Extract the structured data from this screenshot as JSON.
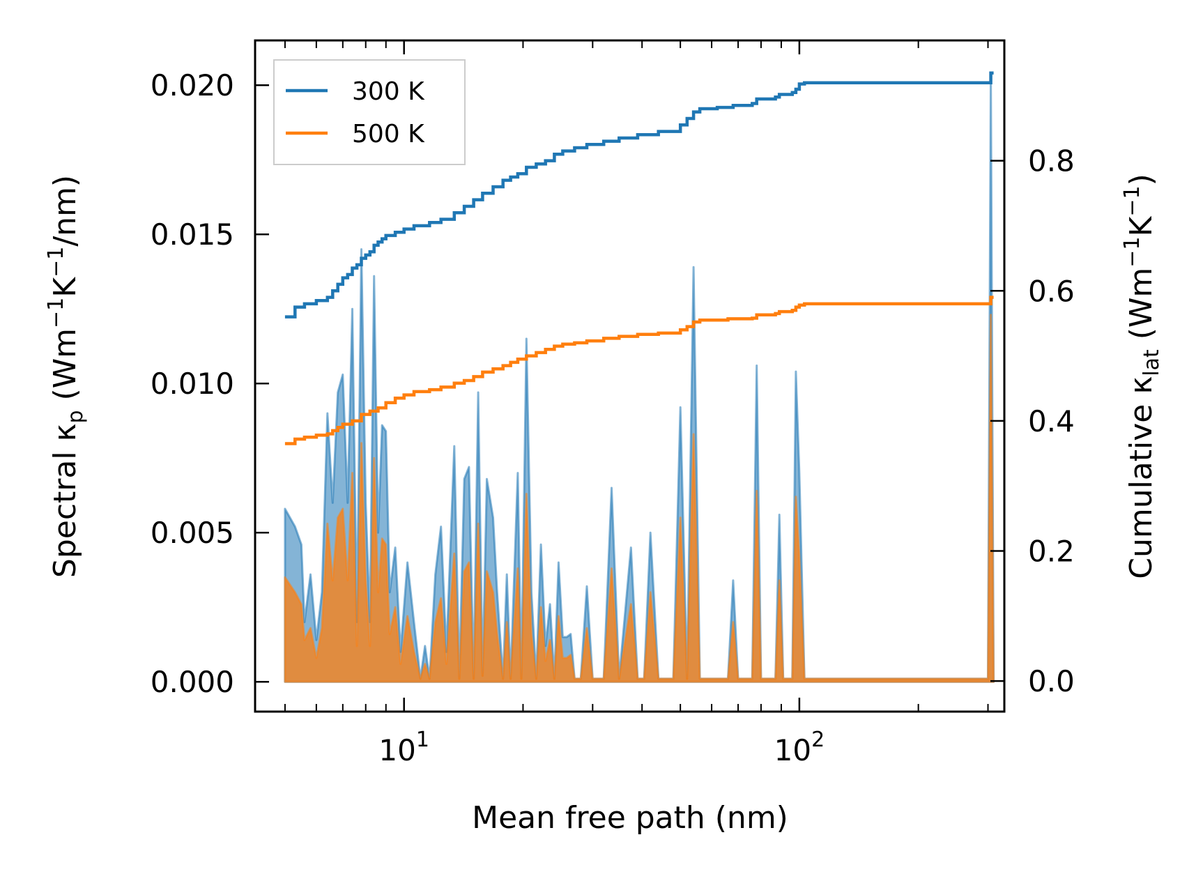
{
  "chart_data": {
    "type": "line",
    "xlabel": "Mean free path (nm)",
    "xscale": "log",
    "xlim": [
      4.2,
      330
    ],
    "x_ticks": [
      10,
      100
    ],
    "x_tick_labels": [
      {
        "base": "10",
        "exp": "1"
      },
      {
        "base": "10",
        "exp": "2"
      }
    ],
    "ylabel_left": {
      "prefix": "Spectral κ",
      "sub": "p",
      "mid": " (Wm",
      "sup1": "−1",
      "mid2": "K",
      "sup2": "−1",
      "suffix": "/nm)"
    },
    "ylim_left": [
      -0.001,
      0.0215
    ],
    "y_ticks_left": [
      0.0,
      0.005,
      0.01,
      0.015,
      0.02
    ],
    "y_tick_labels_left": [
      "0.000",
      "0.005",
      "0.010",
      "0.015",
      "0.020"
    ],
    "ylabel_right": {
      "prefix": "Cumulative κ",
      "sub": "lat",
      "mid": " (Wm",
      "sup1": "−1",
      "mid2": "K",
      "sup2": "−1",
      "suffix": ")"
    },
    "ylim_right": [
      -0.047,
      0.985
    ],
    "y_ticks_right": [
      0.0,
      0.2,
      0.4,
      0.6,
      0.8
    ],
    "y_tick_labels_right": [
      "0.0",
      "0.2",
      "0.4",
      "0.6",
      "0.8"
    ],
    "legend": {
      "position": "upper-left",
      "entries": [
        "300 K",
        "500 K"
      ]
    },
    "series": [
      {
        "name": "300 K",
        "color": "#1f77b4",
        "spectral": [
          [
            5.0,
            0.0058
          ],
          [
            5.3,
            0.0052
          ],
          [
            5.5,
            0.0046
          ],
          [
            5.6,
            0.002
          ],
          [
            5.8,
            0.0036
          ],
          [
            6.0,
            0.0014
          ],
          [
            6.2,
            0.003
          ],
          [
            6.4,
            0.009
          ],
          [
            6.6,
            0.006
          ],
          [
            6.8,
            0.0097
          ],
          [
            7.0,
            0.0103
          ],
          [
            7.2,
            0.006
          ],
          [
            7.4,
            0.0125
          ],
          [
            7.6,
            0.002
          ],
          [
            7.8,
            0.0145
          ],
          [
            8.0,
            0.006
          ],
          [
            8.2,
            0.002
          ],
          [
            8.4,
            0.0136
          ],
          [
            8.6,
            0.005
          ],
          [
            8.8,
            0.0086
          ],
          [
            9.0,
            0.0084
          ],
          [
            9.2,
            0.003
          ],
          [
            9.5,
            0.0045
          ],
          [
            9.8,
            0.001
          ],
          [
            10.2,
            0.004
          ],
          [
            10.6,
            0.002
          ],
          [
            11.0,
            0.0001
          ],
          [
            11.3,
            0.0012
          ],
          [
            11.6,
            0.0001
          ],
          [
            12.0,
            0.0036
          ],
          [
            12.4,
            0.0052
          ],
          [
            12.8,
            0.001
          ],
          [
            13.4,
            0.0079
          ],
          [
            13.8,
            0.0001
          ],
          [
            14.2,
            0.0068
          ],
          [
            14.6,
            0.0072
          ],
          [
            15.0,
            0.0001
          ],
          [
            15.4,
            0.0097
          ],
          [
            15.8,
            0.0002
          ],
          [
            16.2,
            0.0068
          ],
          [
            16.8,
            0.0055
          ],
          [
            17.2,
            0.003
          ],
          [
            17.8,
            0.0001
          ],
          [
            18.2,
            0.0036
          ],
          [
            18.6,
            0.0001
          ],
          [
            19.4,
            0.007
          ],
          [
            19.8,
            0.0001
          ],
          [
            20.4,
            0.0115
          ],
          [
            21.0,
            0.003
          ],
          [
            21.6,
            0.0001
          ],
          [
            22.2,
            0.0046
          ],
          [
            22.8,
            0.0012
          ],
          [
            23.4,
            0.0026
          ],
          [
            24.0,
            0.0001
          ],
          [
            24.6,
            0.004
          ],
          [
            25.2,
            0.0015
          ],
          [
            25.8,
            0.0015
          ],
          [
            26.4,
            0.0016
          ],
          [
            27.0,
            0.0001
          ],
          [
            28.0,
            0.0001
          ],
          [
            29.0,
            0.0032
          ],
          [
            30.0,
            0.0001
          ],
          [
            32.0,
            0.0001
          ],
          [
            33.5,
            0.0065
          ],
          [
            35.0,
            0.0001
          ],
          [
            37.5,
            0.0045
          ],
          [
            39.0,
            0.0001
          ],
          [
            40.5,
            0.0001
          ],
          [
            42.0,
            0.005
          ],
          [
            44.0,
            0.0001
          ],
          [
            48.0,
            0.0001
          ],
          [
            50.0,
            0.0092
          ],
          [
            52.0,
            0.0001
          ],
          [
            54.0,
            0.0139
          ],
          [
            56.0,
            0.0001
          ],
          [
            62.0,
            0.0001
          ],
          [
            66.0,
            0.0001
          ],
          [
            68.0,
            0.0034
          ],
          [
            70.0,
            0.0001
          ],
          [
            76.0,
            0.0001
          ],
          [
            78.0,
            0.0106
          ],
          [
            80.0,
            0.0001
          ],
          [
            87.0,
            0.0001
          ],
          [
            89.0,
            0.0056
          ],
          [
            91.0,
            0.0001
          ],
          [
            96.0,
            0.0001
          ],
          [
            98.0,
            0.0104
          ],
          [
            100.0,
            0.007
          ],
          [
            103.0,
            0.0001
          ],
          [
            300.0,
            0.0001
          ],
          [
            305.0,
            0.0204
          ],
          [
            310.0,
            0.0001
          ]
        ],
        "cumulative": [
          [
            5.0,
            0.56
          ],
          [
            5.3,
            0.575
          ],
          [
            5.6,
            0.58
          ],
          [
            6.0,
            0.585
          ],
          [
            6.4,
            0.59
          ],
          [
            6.6,
            0.6
          ],
          [
            6.8,
            0.61
          ],
          [
            7.0,
            0.62
          ],
          [
            7.2,
            0.625
          ],
          [
            7.4,
            0.635
          ],
          [
            7.6,
            0.64
          ],
          [
            7.8,
            0.65
          ],
          [
            8.0,
            0.655
          ],
          [
            8.2,
            0.66
          ],
          [
            8.4,
            0.67
          ],
          [
            8.6,
            0.675
          ],
          [
            8.8,
            0.68
          ],
          [
            9.0,
            0.685
          ],
          [
            9.5,
            0.69
          ],
          [
            10.0,
            0.695
          ],
          [
            10.6,
            0.7
          ],
          [
            11.6,
            0.705
          ],
          [
            12.4,
            0.71
          ],
          [
            13.4,
            0.72
          ],
          [
            14.2,
            0.73
          ],
          [
            15.0,
            0.74
          ],
          [
            15.8,
            0.75
          ],
          [
            16.8,
            0.76
          ],
          [
            17.8,
            0.77
          ],
          [
            18.6,
            0.775
          ],
          [
            19.4,
            0.78
          ],
          [
            20.4,
            0.79
          ],
          [
            21.6,
            0.795
          ],
          [
            22.8,
            0.8
          ],
          [
            24.0,
            0.81
          ],
          [
            25.2,
            0.815
          ],
          [
            27.0,
            0.82
          ],
          [
            29.0,
            0.825
          ],
          [
            32.0,
            0.83
          ],
          [
            35.0,
            0.835
          ],
          [
            39.0,
            0.84
          ],
          [
            44.0,
            0.845
          ],
          [
            50.0,
            0.855
          ],
          [
            52.0,
            0.865
          ],
          [
            54.0,
            0.875
          ],
          [
            56.0,
            0.88
          ],
          [
            62.0,
            0.882
          ],
          [
            68.0,
            0.885
          ],
          [
            76.0,
            0.888
          ],
          [
            78.0,
            0.895
          ],
          [
            87.0,
            0.898
          ],
          [
            89.0,
            0.902
          ],
          [
            96.0,
            0.905
          ],
          [
            98.0,
            0.91
          ],
          [
            100.0,
            0.918
          ],
          [
            103.0,
            0.92
          ],
          [
            300.0,
            0.92
          ],
          [
            305.0,
            0.935
          ],
          [
            310.0,
            0.935
          ]
        ]
      },
      {
        "name": "500 K",
        "color": "#ff7f0e",
        "spectral": [
          [
            5.0,
            0.0035
          ],
          [
            5.3,
            0.003
          ],
          [
            5.5,
            0.0026
          ],
          [
            5.6,
            0.0014
          ],
          [
            5.8,
            0.0018
          ],
          [
            6.0,
            0.0008
          ],
          [
            6.2,
            0.0018
          ],
          [
            6.4,
            0.0053
          ],
          [
            6.6,
            0.0034
          ],
          [
            6.8,
            0.0055
          ],
          [
            7.0,
            0.0058
          ],
          [
            7.2,
            0.0034
          ],
          [
            7.4,
            0.007
          ],
          [
            7.6,
            0.0012
          ],
          [
            7.8,
            0.008
          ],
          [
            8.0,
            0.0034
          ],
          [
            8.2,
            0.0012
          ],
          [
            8.4,
            0.0075
          ],
          [
            8.6,
            0.003
          ],
          [
            8.8,
            0.0048
          ],
          [
            9.0,
            0.0046
          ],
          [
            9.2,
            0.0016
          ],
          [
            9.5,
            0.0025
          ],
          [
            9.8,
            0.0006
          ],
          [
            10.2,
            0.0022
          ],
          [
            10.6,
            0.001
          ],
          [
            11.0,
            0.0001
          ],
          [
            11.3,
            0.0006
          ],
          [
            11.6,
            0.0001
          ],
          [
            12.0,
            0.002
          ],
          [
            12.4,
            0.0028
          ],
          [
            12.8,
            0.0006
          ],
          [
            13.4,
            0.0043
          ],
          [
            13.8,
            0.0001
          ],
          [
            14.2,
            0.0037
          ],
          [
            14.6,
            0.004
          ],
          [
            15.0,
            0.0001
          ],
          [
            15.4,
            0.0053
          ],
          [
            15.8,
            0.0002
          ],
          [
            16.2,
            0.0037
          ],
          [
            16.8,
            0.003
          ],
          [
            17.2,
            0.0016
          ],
          [
            17.8,
            0.0001
          ],
          [
            18.2,
            0.002
          ],
          [
            18.6,
            0.0001
          ],
          [
            19.4,
            0.0038
          ],
          [
            19.8,
            0.0001
          ],
          [
            20.4,
            0.0063
          ],
          [
            21.0,
            0.0016
          ],
          [
            21.6,
            0.0001
          ],
          [
            22.2,
            0.0025
          ],
          [
            22.8,
            0.0007
          ],
          [
            23.4,
            0.0014
          ],
          [
            24.0,
            0.0001
          ],
          [
            24.6,
            0.0022
          ],
          [
            25.2,
            0.0008
          ],
          [
            25.8,
            0.0008
          ],
          [
            26.4,
            0.0009
          ],
          [
            27.0,
            0.0001
          ],
          [
            28.0,
            0.0001
          ],
          [
            29.0,
            0.0018
          ],
          [
            30.0,
            0.0001
          ],
          [
            32.0,
            0.0001
          ],
          [
            33.5,
            0.0038
          ],
          [
            35.0,
            0.0001
          ],
          [
            37.5,
            0.0026
          ],
          [
            39.0,
            0.0001
          ],
          [
            40.5,
            0.0001
          ],
          [
            42.0,
            0.003
          ],
          [
            44.0,
            0.0001
          ],
          [
            48.0,
            0.0001
          ],
          [
            50.0,
            0.0055
          ],
          [
            52.0,
            0.0001
          ],
          [
            54.0,
            0.0083
          ],
          [
            56.0,
            0.0001
          ],
          [
            62.0,
            0.0001
          ],
          [
            66.0,
            0.0001
          ],
          [
            68.0,
            0.002
          ],
          [
            70.0,
            0.0001
          ],
          [
            76.0,
            0.0001
          ],
          [
            78.0,
            0.0064
          ],
          [
            80.0,
            0.0001
          ],
          [
            87.0,
            0.0001
          ],
          [
            89.0,
            0.0034
          ],
          [
            91.0,
            0.0001
          ],
          [
            96.0,
            0.0001
          ],
          [
            98.0,
            0.0062
          ],
          [
            100.0,
            0.0042
          ],
          [
            103.0,
            0.0001
          ],
          [
            300.0,
            0.0001
          ],
          [
            305.0,
            0.0123
          ],
          [
            310.0,
            0.0001
          ]
        ],
        "cumulative": [
          [
            5.0,
            0.365
          ],
          [
            5.3,
            0.372
          ],
          [
            5.6,
            0.375
          ],
          [
            6.0,
            0.378
          ],
          [
            6.4,
            0.38
          ],
          [
            6.6,
            0.385
          ],
          [
            6.8,
            0.39
          ],
          [
            7.0,
            0.395
          ],
          [
            7.4,
            0.4
          ],
          [
            7.8,
            0.41
          ],
          [
            8.2,
            0.415
          ],
          [
            8.6,
            0.42
          ],
          [
            9.0,
            0.428
          ],
          [
            9.5,
            0.435
          ],
          [
            10.0,
            0.44
          ],
          [
            10.6,
            0.445
          ],
          [
            11.6,
            0.448
          ],
          [
            12.4,
            0.452
          ],
          [
            13.4,
            0.458
          ],
          [
            14.2,
            0.462
          ],
          [
            15.0,
            0.468
          ],
          [
            15.8,
            0.475
          ],
          [
            16.8,
            0.48
          ],
          [
            17.8,
            0.485
          ],
          [
            18.6,
            0.49
          ],
          [
            19.4,
            0.495
          ],
          [
            20.4,
            0.5
          ],
          [
            21.6,
            0.505
          ],
          [
            22.8,
            0.51
          ],
          [
            24.0,
            0.515
          ],
          [
            25.2,
            0.518
          ],
          [
            27.0,
            0.52
          ],
          [
            29.0,
            0.523
          ],
          [
            32.0,
            0.527
          ],
          [
            35.0,
            0.53
          ],
          [
            39.0,
            0.533
          ],
          [
            44.0,
            0.535
          ],
          [
            50.0,
            0.54
          ],
          [
            52.0,
            0.545
          ],
          [
            54.0,
            0.552
          ],
          [
            56.0,
            0.555
          ],
          [
            66.0,
            0.557
          ],
          [
            76.0,
            0.558
          ],
          [
            78.0,
            0.563
          ],
          [
            87.0,
            0.565
          ],
          [
            89.0,
            0.568
          ],
          [
            96.0,
            0.57
          ],
          [
            98.0,
            0.575
          ],
          [
            100.0,
            0.578
          ],
          [
            103.0,
            0.58
          ],
          [
            300.0,
            0.58
          ],
          [
            305.0,
            0.59
          ],
          [
            310.0,
            0.59
          ]
        ]
      }
    ]
  }
}
